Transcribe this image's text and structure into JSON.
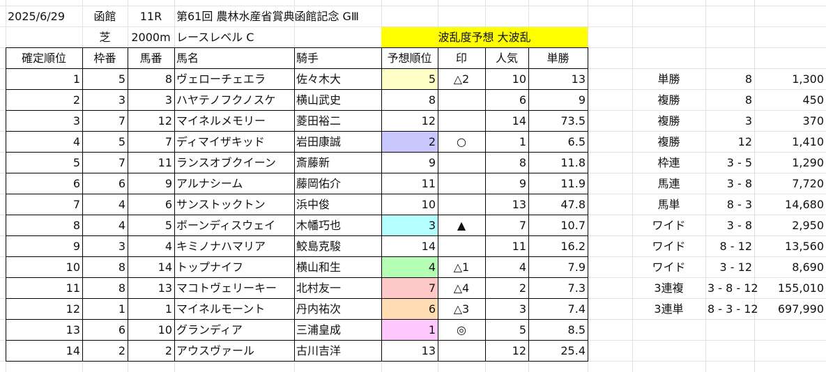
{
  "header": {
    "date": "2025/6/29",
    "venue": "函館",
    "race_no": "11R",
    "race_name": "第61回 農林水産省賞典函館記念 GⅢ",
    "surface": "芝",
    "distance": "2000m",
    "race_level": "レースレベル C",
    "upset_forecast": "波乱度予想 大波乱"
  },
  "columns": [
    "確定順位",
    "枠番",
    "馬番",
    "馬名",
    "騎手",
    "予想順位",
    "印",
    "人気",
    "単勝"
  ],
  "colors": {
    "header_yellow": "#ffff00",
    "pale_yellow": "#ffffc8",
    "lavender": "#c8c8ff",
    "light_cyan": "#b4ffff",
    "light_green": "#b4ffb4",
    "light_red": "#ffc8c8",
    "light_orange": "#ffdcb4",
    "light_magenta": "#ffc8ff"
  },
  "results": [
    {
      "pos": "1",
      "waku": "5",
      "uma": "8",
      "horse": "ヴェローチェエラ",
      "jockey": "佐々木大",
      "pred": "5",
      "pred_color": "pale_yellow",
      "mark": "△2",
      "pop": "10",
      "odds": "13"
    },
    {
      "pos": "2",
      "waku": "3",
      "uma": "3",
      "horse": "ハヤテノフクノスケ",
      "jockey": "横山武史",
      "pred": "8",
      "pred_color": "",
      "mark": "",
      "pop": "6",
      "odds": "9"
    },
    {
      "pos": "3",
      "waku": "7",
      "uma": "12",
      "horse": "マイネルメモリー",
      "jockey": "菱田裕二",
      "pred": "12",
      "pred_color": "",
      "mark": "",
      "pop": "14",
      "odds": "73.5"
    },
    {
      "pos": "4",
      "waku": "5",
      "uma": "7",
      "horse": "ディマイザキッド",
      "jockey": "岩田康誠",
      "pred": "2",
      "pred_color": "lavender",
      "mark": "○",
      "pop": "1",
      "odds": "6.5"
    },
    {
      "pos": "5",
      "waku": "7",
      "uma": "11",
      "horse": "ランスオブクイーン",
      "jockey": "斎藤新",
      "pred": "9",
      "pred_color": "",
      "mark": "",
      "pop": "8",
      "odds": "11.8"
    },
    {
      "pos": "6",
      "waku": "6",
      "uma": "9",
      "horse": "アルナシーム",
      "jockey": "藤岡佑介",
      "pred": "11",
      "pred_color": "",
      "mark": "",
      "pop": "9",
      "odds": "11.9"
    },
    {
      "pos": "7",
      "waku": "4",
      "uma": "6",
      "horse": "サンストックトン",
      "jockey": "浜中俊",
      "pred": "10",
      "pred_color": "",
      "mark": "",
      "pop": "13",
      "odds": "47.8"
    },
    {
      "pos": "8",
      "waku": "4",
      "uma": "5",
      "horse": "ボーンディスウェイ",
      "jockey": "木幡巧也",
      "pred": "3",
      "pred_color": "light_cyan",
      "mark": "▲",
      "pop": "7",
      "odds": "10.7"
    },
    {
      "pos": "9",
      "waku": "3",
      "uma": "4",
      "horse": "キミノナハマリア",
      "jockey": "鮫島克駿",
      "pred": "14",
      "pred_color": "",
      "mark": "",
      "pop": "11",
      "odds": "16.2"
    },
    {
      "pos": "10",
      "waku": "8",
      "uma": "14",
      "horse": "トップナイフ",
      "jockey": "横山和生",
      "pred": "4",
      "pred_color": "light_green",
      "mark": "△1",
      "pop": "4",
      "odds": "7.9"
    },
    {
      "pos": "11",
      "waku": "8",
      "uma": "13",
      "horse": "マコトヴェリーキー",
      "jockey": "北村友一",
      "pred": "7",
      "pred_color": "light_red",
      "mark": "△4",
      "pop": "2",
      "odds": "7.3"
    },
    {
      "pos": "12",
      "waku": "1",
      "uma": "1",
      "horse": "マイネルモーント",
      "jockey": "丹内祐次",
      "pred": "6",
      "pred_color": "light_orange",
      "mark": "△3",
      "pop": "3",
      "odds": "7.4"
    },
    {
      "pos": "13",
      "waku": "6",
      "uma": "10",
      "horse": "グランディア",
      "jockey": "三浦皇成",
      "pred": "1",
      "pred_color": "light_magenta",
      "mark": "◎",
      "pop": "5",
      "odds": "8.5"
    },
    {
      "pos": "14",
      "waku": "2",
      "uma": "2",
      "horse": "アウスヴァール",
      "jockey": "古川吉洋",
      "pred": "13",
      "pred_color": "",
      "mark": "",
      "pop": "12",
      "odds": "25.4"
    }
  ],
  "payouts": [
    {
      "type": "単勝",
      "combo": "8",
      "amount": "1,300"
    },
    {
      "type": "複勝",
      "combo": "8",
      "amount": "450"
    },
    {
      "type": "複勝",
      "combo": "3",
      "amount": "370"
    },
    {
      "type": "複勝",
      "combo": "12",
      "amount": "1,410"
    },
    {
      "type": "枠連",
      "combo": "3 - 5",
      "amount": "1,290"
    },
    {
      "type": "馬連",
      "combo": "3 - 8",
      "amount": "7,720"
    },
    {
      "type": "馬単",
      "combo": "8 - 3",
      "amount": "14,680"
    },
    {
      "type": "ワイド",
      "combo": "3 - 8",
      "amount": "2,950"
    },
    {
      "type": "ワイド",
      "combo": "8 - 12",
      "amount": "13,560"
    },
    {
      "type": "ワイド",
      "combo": "3 - 12",
      "amount": "8,690"
    },
    {
      "type": "3連複",
      "combo": "3 - 8 - 12",
      "amount": "155,010"
    },
    {
      "type": "3連単",
      "combo": "8 - 3 - 12",
      "amount": "697,990"
    }
  ]
}
